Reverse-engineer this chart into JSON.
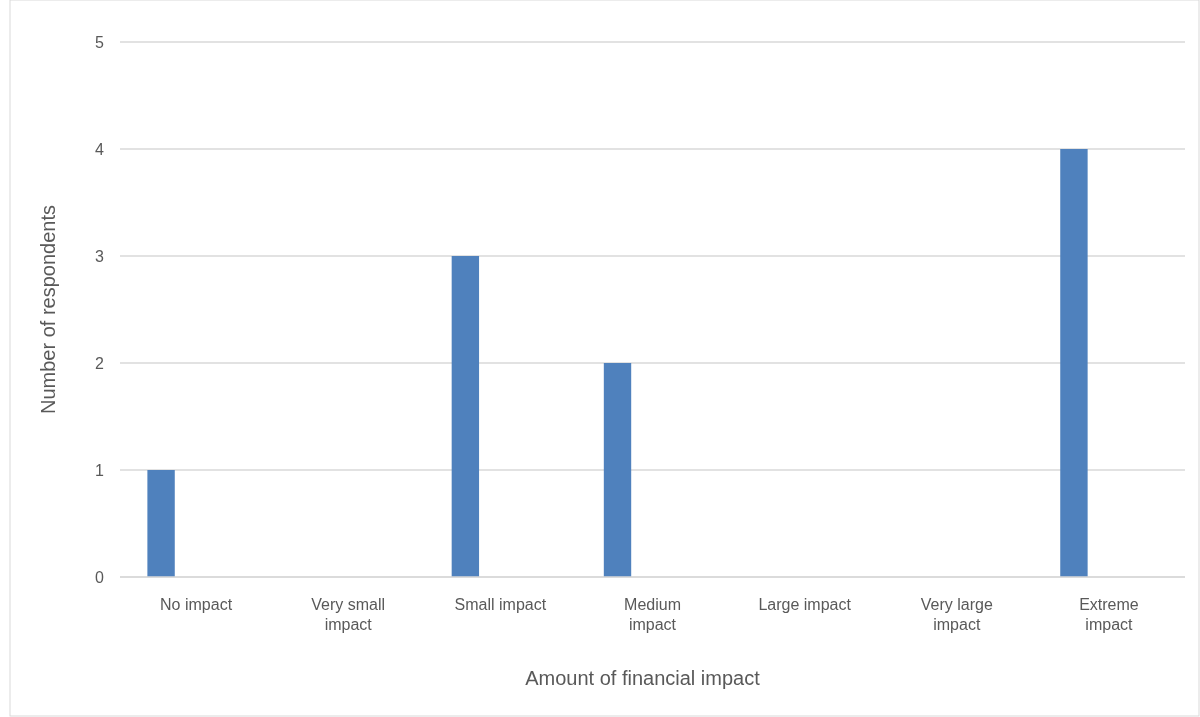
{
  "chart_data": {
    "type": "bar",
    "xlabel": "Amount of financial impact",
    "ylabel": "Number of respondents",
    "categories": [
      "No impact",
      "Very small impact",
      "Small impact",
      "Medium impact",
      "Large impact",
      "Very large impact",
      "Extreme impact"
    ],
    "values": [
      1,
      0,
      3,
      2,
      0,
      0,
      4
    ],
    "color": "#4f81bd",
    "ylim": [
      0,
      5
    ],
    "yticks": [
      0,
      1,
      2,
      3,
      4,
      5
    ],
    "grid": "y"
  }
}
